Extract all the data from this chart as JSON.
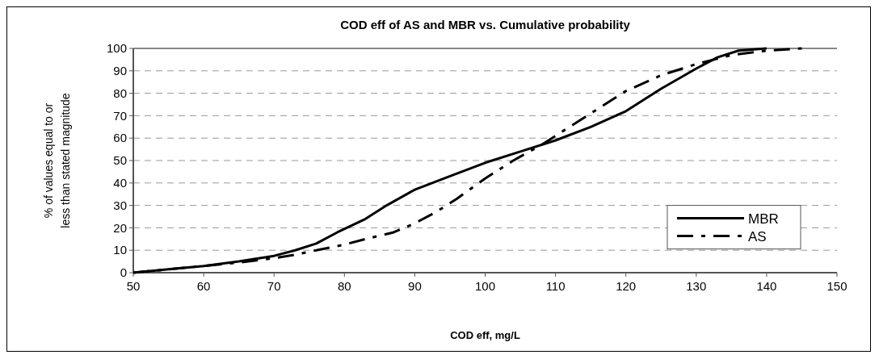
{
  "chart_data": {
    "type": "line",
    "title": "COD eff of AS and MBR vs. Cumulative probability",
    "xlabel": "COD eff, mg/L",
    "ylabel": "% of values equal to or less than stated magnitude",
    "xlim": [
      50,
      150
    ],
    "xticks": [
      50,
      60,
      70,
      80,
      90,
      100,
      110,
      120,
      130,
      140,
      150
    ],
    "ylim": [
      0,
      100
    ],
    "yticks": [
      0,
      10,
      20,
      30,
      40,
      50,
      60,
      70,
      80,
      90,
      100
    ],
    "grid": "y",
    "legend": "right",
    "series": [
      {
        "name": "MBR",
        "color": "#000000",
        "line_style": "solid",
        "x": [
          50,
          55,
          60,
          65,
          70,
          73,
          76,
          79,
          83,
          86,
          90,
          95,
          100,
          105,
          110,
          115,
          120,
          125,
          130,
          133,
          136,
          140
        ],
        "values": [
          0,
          1.5,
          3,
          5,
          7.5,
          10,
          13,
          18,
          24,
          30,
          37,
          43,
          49,
          54,
          59,
          65,
          72,
          82,
          91,
          96,
          99,
          100
        ]
      },
      {
        "name": "AS",
        "color": "#000000",
        "line_style": "dashdot",
        "x": [
          50,
          55,
          60,
          65,
          70,
          73,
          76,
          80,
          83,
          87,
          90,
          93,
          96,
          100,
          104,
          108,
          111,
          115,
          120,
          125,
          130,
          135,
          140,
          145
        ],
        "values": [
          0,
          1.5,
          3,
          4.5,
          6.5,
          8,
          10,
          12.5,
          15,
          18,
          22,
          27,
          33,
          42,
          50,
          57,
          63,
          71,
          81,
          88,
          93,
          97,
          99,
          100
        ]
      }
    ]
  }
}
